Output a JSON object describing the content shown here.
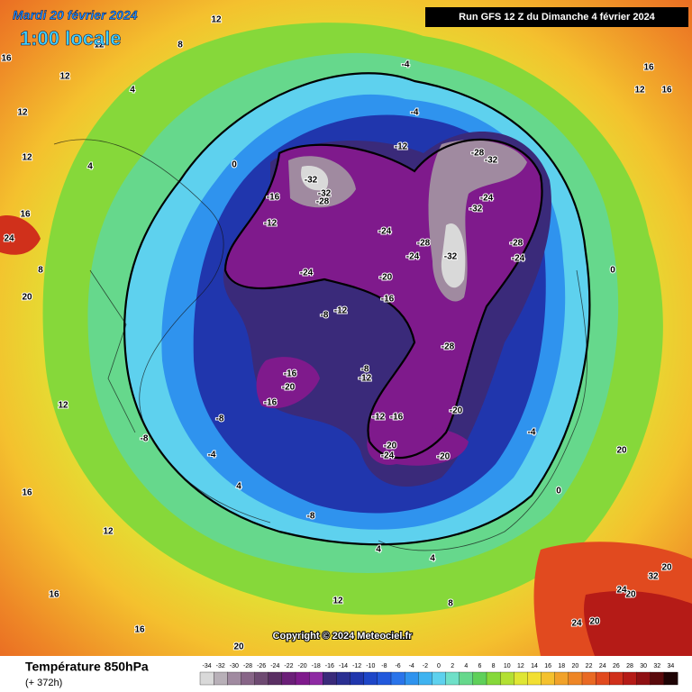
{
  "header": {
    "date": "Mardi 20 février 2024",
    "time": "1:00 locale",
    "run": "Run GFS 12 Z du Dimanche 4 février 2024"
  },
  "copyright": "Copyright © 2024 Meteociel.fr",
  "footer": {
    "title": "Température 850hPa",
    "lead": "(+ 372h)"
  },
  "colorbar": {
    "labels": [
      -34,
      -32,
      -30,
      -28,
      -26,
      -24,
      -22,
      -20,
      -18,
      -16,
      -14,
      -12,
      -10,
      -8,
      -6,
      -4,
      -2,
      0,
      2,
      4,
      6,
      8,
      10,
      12,
      14,
      16,
      18,
      20,
      22,
      24,
      26,
      28,
      30,
      32,
      34
    ],
    "colors": [
      "#d9d9d9",
      "#b8b0b8",
      "#a08aa0",
      "#876587",
      "#6e4a72",
      "#5a2f63",
      "#6b1f78",
      "#7f1a8c",
      "#8e2aa3",
      "#3a2a7a",
      "#2a2f92",
      "#2036ad",
      "#1e46c8",
      "#2259dc",
      "#2a74ea",
      "#2f93ee",
      "#3fb3f0",
      "#5ed1ee",
      "#6fe0c8",
      "#66d88c",
      "#5fd05a",
      "#86d83a",
      "#b3e033",
      "#dfe634",
      "#f2df33",
      "#f4c12e",
      "#f1a22a",
      "#ee8626",
      "#e96923",
      "#e14a1f",
      "#d0301b",
      "#b51b17",
      "#8f1013",
      "#5a0a0c",
      "#1e0405"
    ]
  },
  "map_labels": [
    -32,
    -32,
    -28,
    -28,
    -32,
    -24,
    -32,
    -32,
    -28,
    -24,
    -20,
    -16,
    -24,
    -24,
    -28,
    -28,
    -24,
    -12,
    -4,
    -4,
    0,
    -16,
    -12,
    -12,
    -8,
    -8,
    -12,
    -12,
    -16,
    -20,
    -20,
    -24,
    -20,
    -16,
    -20,
    -16,
    -8,
    -8,
    -4,
    4,
    -8,
    4,
    4,
    12,
    20,
    16,
    16,
    16,
    12,
    20,
    24,
    16,
    12,
    12,
    4,
    8,
    12,
    12,
    -4,
    0,
    0,
    20,
    20,
    24,
    32,
    20,
    24,
    20,
    12,
    16,
    16,
    16,
    8,
    12,
    8,
    4,
    12
  ]
}
